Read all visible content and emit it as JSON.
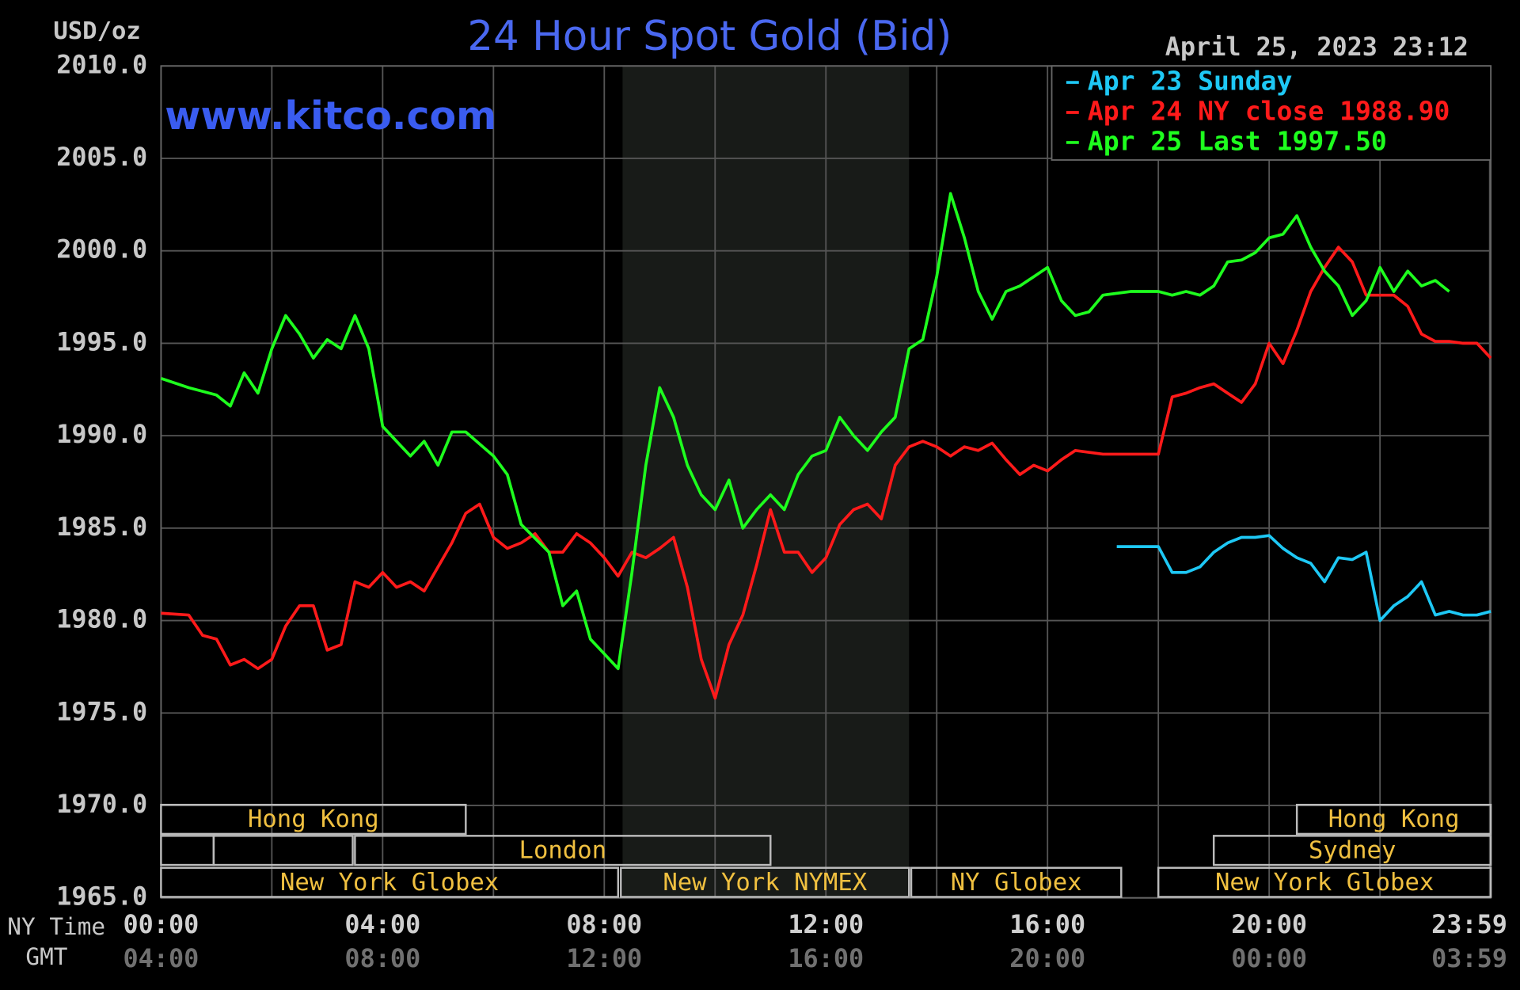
{
  "chart_data": {
    "type": "line",
    "title": "24 Hour Spot Gold (Bid)",
    "timestamp": "April 25, 2023 23:12",
    "watermark": "www.kitco.com",
    "y_label": "USD/oz",
    "x_label": "NY Time",
    "x2_label": "GMT",
    "xlim": [
      0,
      24
    ],
    "xticks": [
      {
        "value": 0,
        "label": "00:00"
      },
      {
        "value": 4,
        "label": "04:00"
      },
      {
        "value": 8,
        "label": "08:00"
      },
      {
        "value": 12,
        "label": "12:00"
      },
      {
        "value": 16,
        "label": "16:00"
      },
      {
        "value": 20,
        "label": "20:00"
      },
      {
        "value": 23.98,
        "label": "23:59"
      }
    ],
    "x2ticks": [
      {
        "value": 0,
        "label": "04:00"
      },
      {
        "value": 4,
        "label": "08:00"
      },
      {
        "value": 8,
        "label": "12:00"
      },
      {
        "value": 12,
        "label": "16:00"
      },
      {
        "value": 16,
        "label": "20:00"
      },
      {
        "value": 20,
        "label": "00:00"
      },
      {
        "value": 23.98,
        "label": "03:59"
      }
    ],
    "x_minor_ticks": [
      2,
      6,
      10,
      14,
      18,
      22
    ],
    "ylim": [
      1965,
      2010
    ],
    "yticks": [
      {
        "value": 1965,
        "label": "1965.0"
      },
      {
        "value": 1970,
        "label": "1970.0"
      },
      {
        "value": 1975,
        "label": "1975.0"
      },
      {
        "value": 1980,
        "label": "1980.0"
      },
      {
        "value": 1985,
        "label": "1985.0"
      },
      {
        "value": 1990,
        "label": "1990.0"
      },
      {
        "value": 1995,
        "label": "1995.0"
      },
      {
        "value": 2000,
        "label": "2000.0"
      },
      {
        "value": 2005,
        "label": "2005.0"
      },
      {
        "value": 2010,
        "label": "2010.0"
      }
    ],
    "grid": true,
    "legend": "upper right",
    "shaded_span": [
      8.33,
      13.5
    ],
    "sessions": [
      [
        {
          "label": "Hong Kong",
          "start": 0,
          "end": 5.5
        },
        {
          "label": "Hong Kong",
          "start": 20.5,
          "end": 24
        }
      ],
      [
        {
          "start": 0,
          "end": 0.95
        },
        {
          "start": 0.95,
          "end": 3.46
        },
        {
          "label": "London",
          "start": 3.5,
          "end": 11
        },
        {
          "label": "Sydney",
          "start": 19,
          "end": 24
        }
      ],
      [
        {
          "label": "New York Globex",
          "start": 0,
          "end": 8.25
        },
        {
          "label": "New York NYMEX",
          "start": 8.3,
          "end": 13.5
        },
        {
          "label": "NY Globex",
          "start": 13.54,
          "end": 17.33
        },
        {
          "label": "New York Globex",
          "start": 18,
          "end": 24
        }
      ]
    ],
    "series": [
      {
        "name": "Apr 23 Sunday",
        "color": "#1ec8f5",
        "x": [
          17.25,
          18,
          18.25,
          18.5,
          18.75,
          19,
          19.25,
          19.5,
          19.75,
          20,
          20.25,
          20.5,
          20.75,
          21,
          21.25,
          21.5,
          21.75,
          22,
          22.25,
          22.5,
          22.75,
          23,
          23.25,
          23.5,
          23.75,
          24
        ],
        "values": [
          1984.0,
          1984.0,
          1982.6,
          1982.6,
          1982.9,
          1983.7,
          1984.2,
          1984.5,
          1984.5,
          1984.6,
          1983.9,
          1983.4,
          1983.1,
          1982.1,
          1983.4,
          1983.3,
          1983.7,
          1980.0,
          1980.8,
          1981.3,
          1982.1,
          1980.3,
          1980.5,
          1980.3,
          1980.3,
          1980.5
        ]
      },
      {
        "name": "Apr 24 NY close 1988.90",
        "color": "#ff1a1a",
        "x": [
          0,
          0.5,
          0.75,
          1,
          1.25,
          1.5,
          1.75,
          2,
          2.25,
          2.5,
          2.75,
          3,
          3.25,
          3.5,
          3.75,
          4,
          4.25,
          4.5,
          4.75,
          5,
          5.25,
          5.5,
          5.75,
          6,
          6.25,
          6.5,
          6.75,
          7,
          7.25,
          7.5,
          7.75,
          8,
          8.25,
          8.5,
          8.75,
          9,
          9.25,
          9.5,
          9.75,
          10,
          10.25,
          10.5,
          10.75,
          11,
          11.25,
          11.5,
          11.75,
          12,
          12.25,
          12.5,
          12.75,
          13,
          13.25,
          13.5,
          13.75,
          14,
          14.25,
          14.5,
          14.75,
          15,
          15.25,
          15.5,
          15.75,
          16,
          16.25,
          16.5,
          17,
          17.5,
          18,
          18.25,
          18.5,
          18.75,
          19,
          19.25,
          19.5,
          19.75,
          20,
          20.25,
          20.5,
          20.75,
          21,
          21.25,
          21.5,
          21.75,
          22,
          22.25,
          22.5,
          22.75,
          23,
          23.25,
          23.5,
          23.75,
          24
        ],
        "values": [
          1980.4,
          1980.3,
          1979.2,
          1979.0,
          1977.6,
          1977.9,
          1977.4,
          1977.9,
          1979.7,
          1980.8,
          1980.8,
          1978.4,
          1978.7,
          1982.1,
          1981.8,
          1982.6,
          1981.8,
          1982.1,
          1981.6,
          1982.9,
          1984.2,
          1985.8,
          1986.3,
          1984.5,
          1983.9,
          1984.2,
          1984.7,
          1983.7,
          1983.7,
          1984.7,
          1984.2,
          1983.4,
          1982.4,
          1983.7,
          1983.4,
          1983.9,
          1984.5,
          1981.8,
          1977.9,
          1975.8,
          1978.7,
          1980.3,
          1983.0,
          1986.0,
          1983.7,
          1983.7,
          1982.6,
          1983.4,
          1985.2,
          1986.0,
          1986.3,
          1985.5,
          1988.4,
          1989.4,
          1989.7,
          1989.4,
          1988.9,
          1989.4,
          1989.2,
          1989.6,
          1988.7,
          1987.9,
          1988.4,
          1988.1,
          1988.7,
          1989.2,
          1989.0,
          1989.0,
          1989.0,
          1992.1,
          1992.3,
          1992.6,
          1992.8,
          1992.3,
          1991.8,
          1992.8,
          1995.0,
          1993.9,
          1995.7,
          1997.8,
          1999.1,
          2000.2,
          1999.4,
          1997.6,
          1997.6,
          1997.6,
          1997.0,
          1995.5,
          1995.1,
          1995.1,
          1995.0,
          1995.0,
          1994.2
        ]
      },
      {
        "name": "Apr 25 Last 1997.50",
        "color": "#1eff1e",
        "x": [
          0,
          0.5,
          1,
          1.25,
          1.5,
          1.75,
          2,
          2.25,
          2.5,
          2.75,
          3,
          3.25,
          3.5,
          3.75,
          4,
          4.5,
          4.75,
          5,
          5.25,
          5.5,
          6,
          6.25,
          6.5,
          7,
          7.25,
          7.5,
          7.75,
          8,
          8.25,
          8.5,
          8.75,
          9,
          9.25,
          9.5,
          9.75,
          10,
          10.25,
          10.5,
          10.75,
          11,
          11.25,
          11.5,
          11.75,
          12,
          12.25,
          12.5,
          12.75,
          13,
          13.25,
          13.5,
          13.75,
          14,
          14.25,
          14.5,
          14.75,
          15,
          15.25,
          15.5,
          15.75,
          16,
          16.25,
          16.5,
          16.75,
          17,
          17.5,
          18,
          18.25,
          18.5,
          18.75,
          19,
          19.25,
          19.5,
          19.75,
          20,
          20.25,
          20.5,
          20.75,
          21,
          21.25,
          21.5,
          21.75,
          22,
          22.25,
          22.5,
          22.75,
          23,
          23.25
        ],
        "values": [
          1993.1,
          1992.6,
          1992.2,
          1991.6,
          1993.4,
          1992.3,
          1994.7,
          1996.5,
          1995.5,
          1994.2,
          1995.2,
          1994.7,
          1996.5,
          1994.7,
          1990.5,
          1988.9,
          1989.7,
          1988.4,
          1990.2,
          1990.2,
          1988.9,
          1987.9,
          1985.2,
          1983.7,
          1980.8,
          1981.6,
          1979.0,
          1978.2,
          1977.4,
          1982.6,
          1988.4,
          1992.6,
          1991.0,
          1988.4,
          1986.8,
          1986.0,
          1987.6,
          1985.0,
          1986.0,
          1986.8,
          1986.0,
          1987.9,
          1988.9,
          1989.2,
          1991.0,
          1990.0,
          1989.2,
          1990.2,
          1991.0,
          1994.7,
          1995.2,
          1998.6,
          2003.1,
          2000.7,
          1997.8,
          1996.3,
          1997.8,
          1998.1,
          1998.6,
          1999.1,
          1997.3,
          1996.5,
          1996.7,
          1997.6,
          1997.8,
          1997.8,
          1997.6,
          1997.8,
          1997.6,
          1998.1,
          1999.4,
          1999.5,
          1999.9,
          2000.7,
          2000.9,
          2001.9,
          2000.2,
          1998.9,
          1998.1,
          1996.5,
          1997.3,
          1999.1,
          1997.8,
          1998.9,
          1998.1,
          1998.4,
          1997.8
        ]
      }
    ]
  }
}
